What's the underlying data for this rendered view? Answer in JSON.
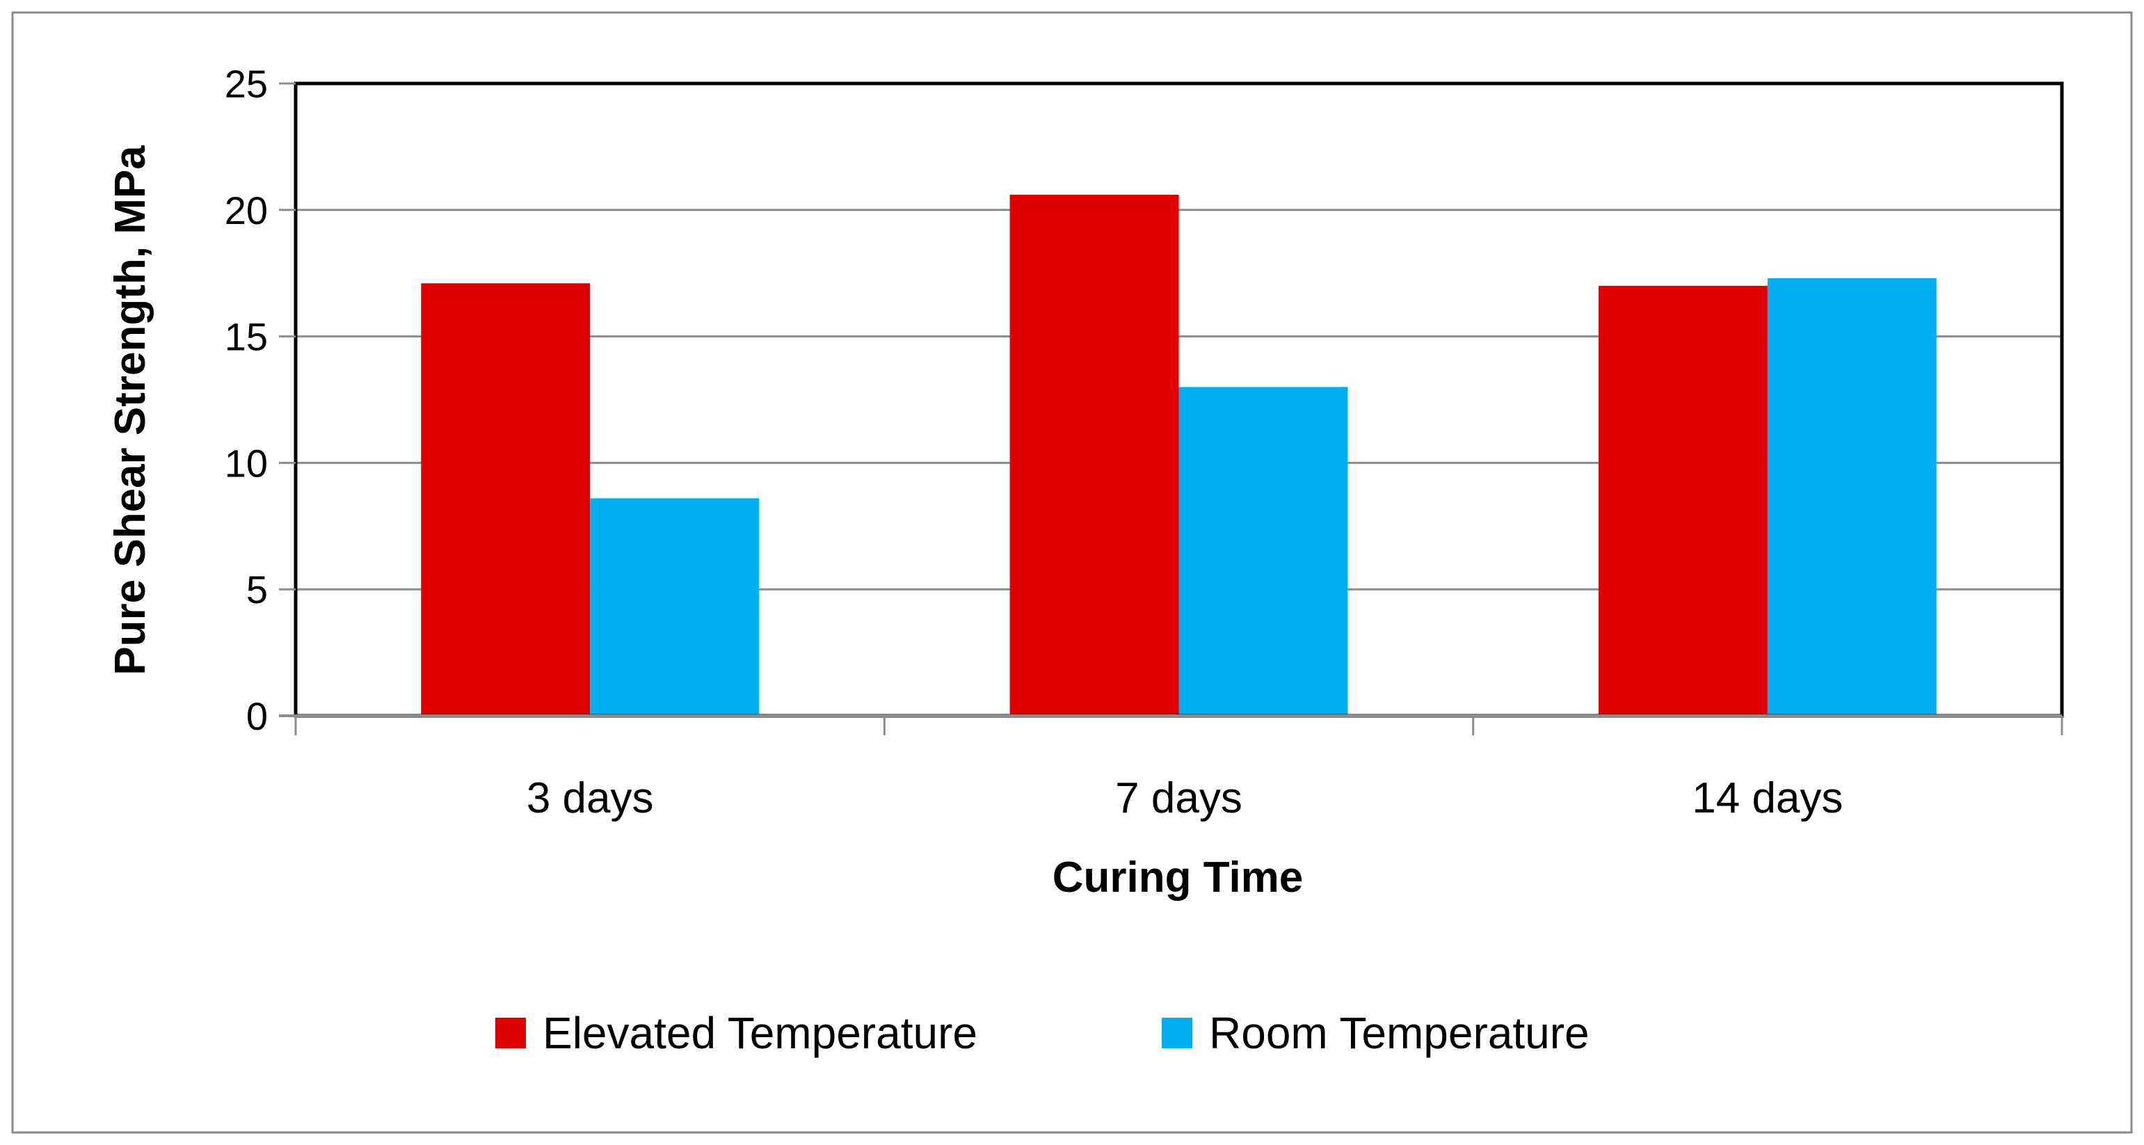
{
  "chart_data": {
    "type": "bar",
    "title": "",
    "xlabel": "Curing Time",
    "ylabel": "Pure Shear Strength, MPa",
    "categories": [
      "3 days",
      "7 days",
      "14 days"
    ],
    "series": [
      {
        "name": "Elevated Temperature",
        "color": "#E00000",
        "values": [
          17.1,
          20.6,
          17.0
        ]
      },
      {
        "name": "Room Temperature",
        "color": "#00B0F0",
        "values": [
          8.6,
          13.0,
          17.3
        ]
      }
    ],
    "ylim": [
      0,
      25
    ],
    "yticks": [
      "0",
      "5",
      "10",
      "15",
      "20",
      "25"
    ],
    "ytick_values": [
      0,
      5,
      10,
      15,
      20,
      25
    ],
    "grid": true,
    "legend": "bottom"
  }
}
